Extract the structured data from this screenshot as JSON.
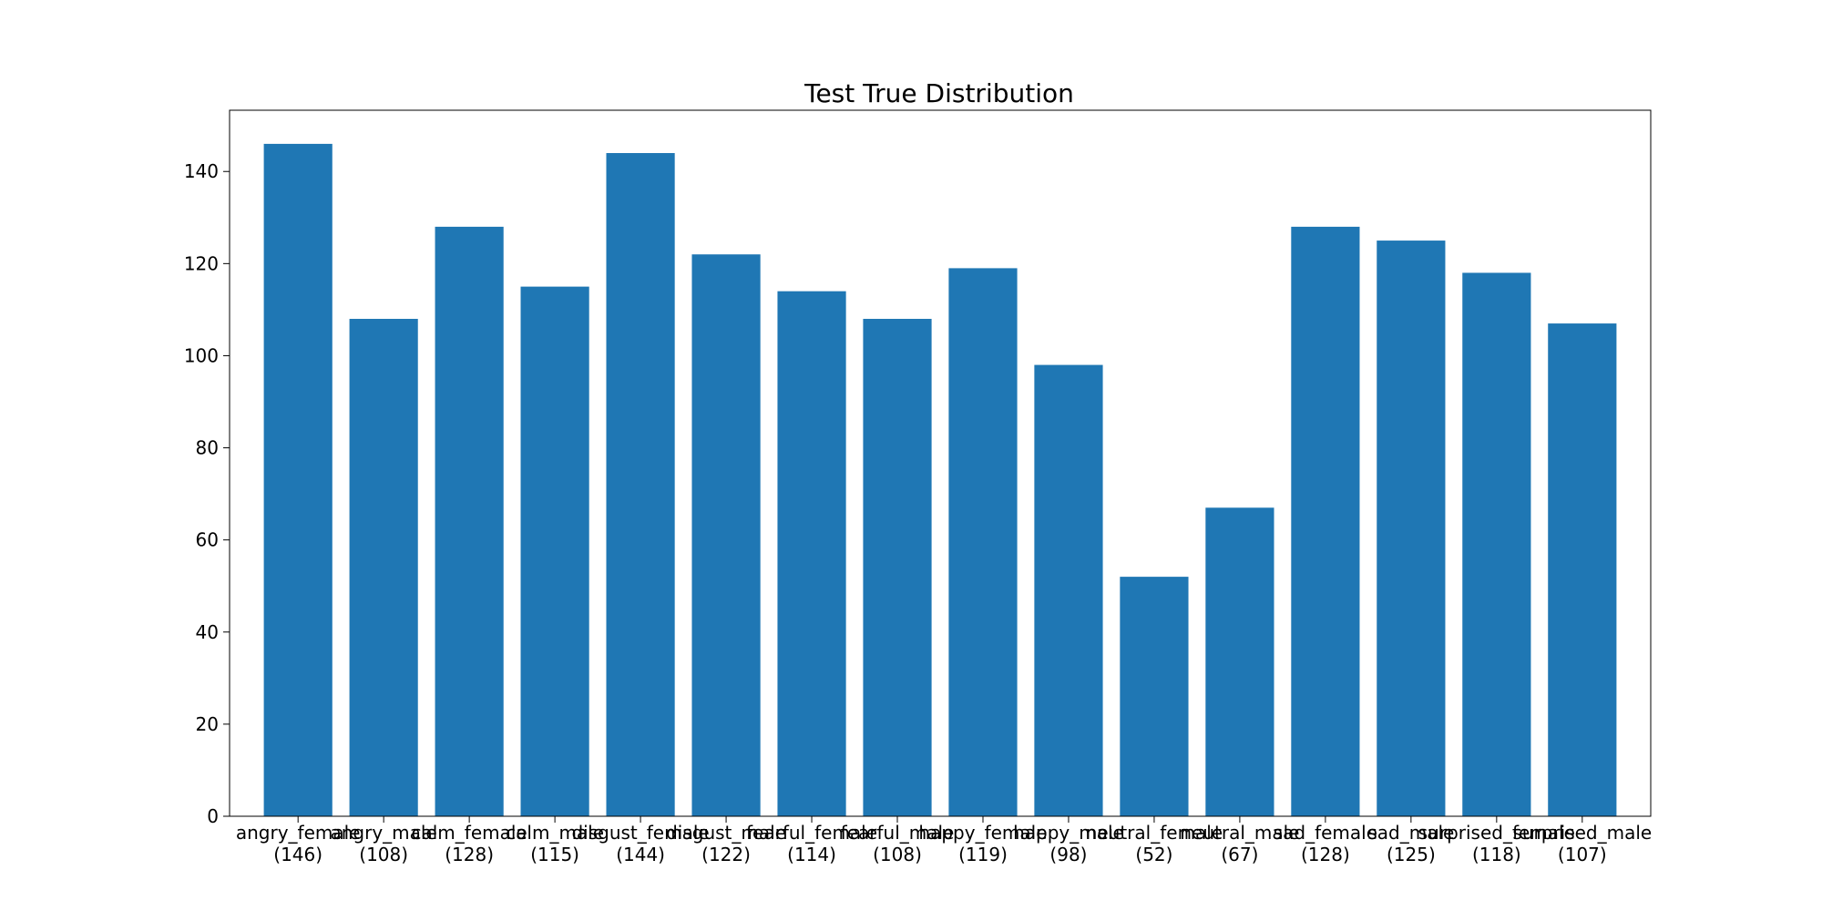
{
  "chart_data": {
    "type": "bar",
    "title": "Test True Distribution",
    "xlabel": "",
    "ylabel": "",
    "categories": [
      "angry_female",
      "angry_male",
      "calm_female",
      "calm_male",
      "disgust_female",
      "disgust_male",
      "fearful_female",
      "fearful_male",
      "happy_female",
      "happy_male",
      "neutral_female",
      "neutral_male",
      "sad_female",
      "sad_male",
      "surprised_female",
      "surprised_male"
    ],
    "tick_labels": [
      [
        "angry_female",
        "(146)"
      ],
      [
        "angry_male",
        "(108)"
      ],
      [
        "calm_female",
        "(128)"
      ],
      [
        "calm_male",
        "(115)"
      ],
      [
        "disgust_female",
        "(144)"
      ],
      [
        "disgust_male",
        "(122)"
      ],
      [
        "fearful_female",
        "(114)"
      ],
      [
        "fearful_male",
        "(108)"
      ],
      [
        "happy_female",
        "(119)"
      ],
      [
        "happy_male",
        "(98)"
      ],
      [
        "neutral_female",
        "(52)"
      ],
      [
        "neutral_male",
        "(67)"
      ],
      [
        "sad_female",
        "(128)"
      ],
      [
        "sad_male",
        "(125)"
      ],
      [
        "surprised_female",
        "(118)"
      ],
      [
        "surprised_male",
        "(107)"
      ]
    ],
    "values": [
      146,
      108,
      128,
      115,
      144,
      122,
      114,
      108,
      119,
      98,
      52,
      67,
      128,
      125,
      118,
      107
    ],
    "ylim": [
      0,
      153.3
    ],
    "yticks": [
      0,
      20,
      40,
      60,
      80,
      100,
      120,
      140
    ],
    "bar_color": "#1f77b4",
    "grid": false,
    "legend": "none"
  }
}
